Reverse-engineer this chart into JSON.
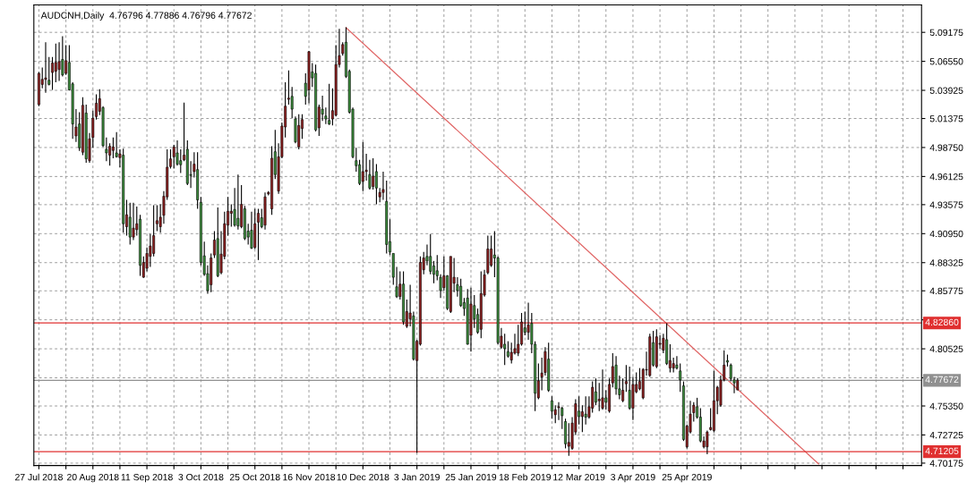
{
  "chart_data": {
    "type": "candlestick",
    "title": "AUDCNH,Daily  4.76796 4.77886 4.76796 4.77672",
    "categories": [
      "27 Jul 2018",
      null,
      null,
      null,
      null,
      null,
      null,
      null,
      null,
      null,
      null,
      null,
      null,
      null,
      null,
      null,
      "20 Aug 2018",
      null,
      null,
      null,
      null,
      null,
      null,
      null,
      null,
      null,
      null,
      null,
      null,
      null,
      null,
      null,
      "11 Sep 2018",
      null,
      null,
      null,
      null,
      null,
      null,
      null,
      null,
      null,
      null,
      null,
      null,
      null,
      null,
      null,
      "3 Oct 2018",
      null,
      null,
      null,
      null,
      null,
      null,
      null,
      null,
      null,
      null,
      null,
      null,
      null,
      null,
      null,
      "25 Oct 2018",
      null,
      null,
      null,
      null,
      null,
      null,
      null,
      null,
      null,
      null,
      null,
      null,
      null,
      null,
      null,
      "16 Nov 2018",
      null,
      null,
      null,
      null,
      null,
      null,
      null,
      null,
      null,
      null,
      null,
      null,
      null,
      null,
      null,
      "10 Dec 2018",
      null,
      null,
      null,
      null,
      null,
      null,
      null,
      null,
      null,
      null,
      null,
      null,
      null,
      null,
      null,
      "3 Jan 2019",
      null,
      null,
      null,
      null,
      null,
      null,
      null,
      null,
      null,
      null,
      null,
      null,
      null,
      null,
      null,
      "25 Jan 2019",
      null,
      null,
      null,
      null,
      null,
      null,
      null,
      null,
      null,
      null,
      null,
      null,
      null,
      null,
      null,
      "18 Feb 2019",
      null,
      null,
      null,
      null,
      null,
      null,
      null,
      null,
      null,
      null,
      null,
      null,
      null,
      null,
      null,
      "12 Mar 2019",
      null,
      null,
      null,
      null,
      null,
      null,
      null,
      null,
      null,
      null,
      null,
      null,
      null,
      null,
      null,
      "3 Apr 2019",
      null,
      null,
      null,
      null,
      null,
      null,
      null,
      null,
      null,
      null,
      null,
      null,
      null,
      null,
      null,
      "25 Apr 2019",
      null,
      null,
      null,
      null,
      null,
      null,
      null,
      null,
      null,
      null,
      null,
      null,
      null,
      null,
      null,
      null,
      null,
      null,
      null,
      null,
      null,
      null,
      null,
      null,
      null,
      null,
      null,
      null,
      null,
      null,
      null,
      null,
      null,
      null,
      null,
      null,
      null,
      null,
      null,
      null,
      null,
      null,
      null,
      null,
      null,
      null,
      null,
      null,
      null,
      null,
      null,
      null,
      null,
      null,
      null,
      null,
      null,
      null,
      null,
      null,
      null,
      null,
      null,
      null,
      null,
      null,
      null,
      null,
      null
    ],
    "ohlc": [
      [
        5.0263,
        5.0559,
        5.0249,
        5.0546
      ],
      [
        5.0446,
        5.0599,
        5.0411,
        5.0492
      ],
      [
        5.0492,
        5.0828,
        5.037,
        5.0505
      ],
      [
        5.0484,
        5.0694,
        5.0438,
        5.0446
      ],
      [
        5.0554,
        5.0694,
        5.0397,
        5.064
      ],
      [
        5.0565,
        5.0815,
        5.0465,
        5.0645
      ],
      [
        5.0581,
        5.0828,
        5.0478,
        5.0653
      ],
      [
        5.0672,
        5.0882,
        5.0519,
        5.0532
      ],
      [
        5.0546,
        5.0802,
        5.0532,
        5.0661
      ],
      [
        5.0645,
        5.0802,
        5.039,
        5.0397
      ],
      [
        5.0451,
        5.0465,
        4.9953,
        5.0088
      ],
      [
        4.998,
        5.0222,
        4.9926,
        5.0061
      ],
      [
        5.0088,
        5.0195,
        4.9845,
        4.9872
      ],
      [
        4.9832,
        5.033,
        4.9805,
        5.0257
      ],
      [
        5.0187,
        5.0263,
        4.9737,
        4.9772
      ],
      [
        4.9756,
        5.0007,
        4.9737,
        4.9953
      ],
      [
        4.9966,
        5.0209,
        4.9872,
        5.0141
      ],
      [
        5.0155,
        5.0357,
        5.0128,
        5.0276
      ],
      [
        5.0203,
        5.0403,
        5.0168,
        5.0317
      ],
      [
        5.0236,
        5.0249,
        4.988,
        4.9891
      ],
      [
        4.9859,
        4.9966,
        4.9751,
        4.9826
      ],
      [
        4.9805,
        4.9913,
        4.971,
        4.9886
      ],
      [
        4.9848,
        4.9966,
        4.9778,
        4.988
      ],
      [
        4.9826,
        5.0015,
        4.9783,
        4.9791
      ],
      [
        4.9783,
        4.9859,
        4.9697,
        4.9818
      ],
      [
        4.9805,
        4.9864,
        4.9104,
        4.9185
      ],
      [
        4.9158,
        4.9401,
        4.9077,
        4.9266
      ],
      [
        4.9244,
        4.9374,
        4.8997,
        4.9064
      ],
      [
        4.9064,
        4.9374,
        4.9037,
        4.9145
      ],
      [
        4.9131,
        4.9341,
        4.9077,
        4.9185
      ],
      [
        4.9226,
        4.9266,
        4.8714,
        4.8808
      ],
      [
        4.87,
        4.8889,
        4.8695,
        4.8835
      ],
      [
        4.8781,
        4.897,
        4.8754,
        4.8916
      ],
      [
        4.8889,
        4.9091,
        4.8794,
        4.8983
      ],
      [
        4.8916,
        4.9352,
        4.8889,
        4.9077
      ],
      [
        4.9185,
        4.9352,
        4.9118,
        4.9212
      ],
      [
        4.9158,
        4.936,
        4.9104,
        4.9244
      ],
      [
        4.9261,
        4.9481,
        4.9185,
        4.9433
      ],
      [
        4.9428,
        4.9859,
        4.9401,
        4.9697
      ],
      [
        4.9702,
        4.9859,
        4.9684,
        4.9772
      ],
      [
        4.9791,
        4.9899,
        4.9684,
        4.988
      ],
      [
        4.9826,
        4.9939,
        4.971,
        4.9724
      ],
      [
        4.9756,
        4.9859,
        4.9643,
        4.9719
      ],
      [
        4.9764,
        5.0282,
        4.9751,
        4.9805
      ],
      [
        4.9859,
        4.9939,
        4.9535,
        4.9549
      ],
      [
        4.963,
        4.9751,
        4.9508,
        4.9622
      ],
      [
        4.9657,
        4.9832,
        4.9603,
        4.9724
      ],
      [
        4.9675,
        4.9832,
        4.932,
        4.9401
      ],
      [
        4.9379,
        4.9428,
        4.8808,
        4.8835
      ],
      [
        4.8894,
        4.9023,
        4.8714,
        4.8727
      ],
      [
        4.8733,
        4.8808,
        4.8552,
        4.8579
      ],
      [
        4.8633,
        4.8916,
        4.8566,
        4.8875
      ],
      [
        4.8902,
        4.9118,
        4.8875,
        4.9037
      ],
      [
        4.905,
        4.9333,
        4.87,
        4.8714
      ],
      [
        4.8741,
        4.9118,
        4.8727,
        4.891
      ],
      [
        4.8889,
        4.9293,
        4.8862,
        4.9185
      ],
      [
        4.9172,
        4.9428,
        4.9077,
        4.9298
      ],
      [
        4.9279,
        4.936,
        4.9158,
        4.9298
      ],
      [
        4.9314,
        4.9508,
        4.9158,
        4.9172
      ],
      [
        4.9234,
        4.963,
        4.9131,
        4.9164
      ],
      [
        4.9158,
        4.9535,
        4.9145,
        4.936
      ],
      [
        4.932,
        4.9347,
        4.9037,
        4.905
      ],
      [
        4.9118,
        4.9185,
        4.8997,
        4.9064
      ],
      [
        4.9126,
        4.9293,
        4.8956,
        4.8964
      ],
      [
        4.897,
        4.932,
        4.8956,
        4.9185
      ],
      [
        4.9199,
        4.932,
        4.8856,
        4.9279
      ],
      [
        4.9239,
        4.932,
        4.9145,
        4.9158
      ],
      [
        4.9172,
        4.9468,
        4.9131,
        4.9428
      ],
      [
        4.9455,
        4.9481,
        4.9441,
        4.9468
      ],
      [
        4.932,
        4.9886,
        4.9266,
        4.9778
      ],
      [
        4.9837,
        5.0034,
        4.9589,
        4.963
      ],
      [
        4.9481,
        4.9913,
        4.9455,
        4.9791
      ],
      [
        4.9791,
        5.0101,
        4.9778,
        5.0069
      ],
      [
        5.0061,
        5.0465,
        4.9966,
        5.0249
      ],
      [
        5.0311,
        5.0573,
        5.0263,
        5.0322
      ],
      [
        5.0338,
        5.0424,
        5.0141,
        5.0222
      ],
      [
        5.0133,
        5.0155,
        4.9913,
        4.9926
      ],
      [
        4.988,
        5.0177,
        4.9859,
        5.0074
      ],
      [
        5.0047,
        5.0177,
        4.9953,
        5.0128
      ],
      [
        5.0457,
        5.0546,
        5.0263,
        5.0338
      ],
      [
        5.0397,
        5.0748,
        5.0276,
        5.0742
      ],
      [
        5.0559,
        5.064,
        5.0424,
        5.0505
      ],
      [
        5.0546,
        5.0626,
        5.002,
        5.0034
      ],
      [
        5.0053,
        5.0263,
        4.998,
        5.0241
      ],
      [
        5.0222,
        5.0344,
        5.0115,
        5.0177
      ],
      [
        5.016,
        5.0236,
        5.0088,
        5.0133
      ],
      [
        5.012,
        5.0451,
        5.008,
        5.0088
      ],
      [
        5.0133,
        5.0411,
        5.0074,
        5.0209
      ],
      [
        5.0168,
        5.0802,
        5.0155,
        5.0626
      ],
      [
        5.0626,
        5.095,
        5.0599,
        5.0707
      ],
      [
        5.0726,
        5.0828,
        5.0707,
        5.0807
      ],
      [
        5.0828,
        5.0963,
        5.0505,
        5.0519
      ],
      [
        5.0565,
        5.0581,
        5.0182,
        5.0195
      ],
      [
        5.0222,
        5.0236,
        4.9778,
        4.9791
      ],
      [
        4.9756,
        4.9872,
        4.9657,
        4.971
      ],
      [
        4.9719,
        4.9764,
        4.9535,
        4.9549
      ],
      [
        4.9568,
        4.9926,
        4.9481,
        4.9657
      ],
      [
        4.9657,
        4.9818,
        4.9576,
        4.967
      ],
      [
        4.963,
        4.9764,
        4.9495,
        4.9508
      ],
      [
        4.9522,
        4.9778,
        4.9495,
        4.9616
      ],
      [
        4.9657,
        4.9724,
        4.936,
        4.9508
      ],
      [
        4.9428,
        4.9508,
        4.9379,
        4.9468
      ],
      [
        4.9468,
        4.9657,
        4.9401,
        4.9495
      ],
      [
        4.9387,
        4.9576,
        4.8916,
        4.8997
      ],
      [
        4.9023,
        4.9226,
        4.8902,
        4.8929
      ],
      [
        4.8916,
        4.8916,
        4.8633,
        4.87
      ],
      [
        4.8614,
        4.8794,
        4.8512,
        4.8525
      ],
      [
        4.8525,
        4.8754,
        4.8498,
        4.8638
      ],
      [
        4.8638,
        4.8754,
        4.8269,
        4.8296
      ],
      [
        4.8256,
        4.8498,
        4.8242,
        4.839
      ],
      [
        4.8323,
        4.8633,
        4.8256,
        4.8377
      ],
      [
        4.835,
        4.839,
        4.7946,
        4.7959
      ],
      [
        4.7946,
        4.8135,
        4.7111,
        4.8121
      ],
      [
        4.8094,
        4.8889,
        4.8081,
        4.8835
      ],
      [
        4.8768,
        4.8929,
        4.8727,
        4.8875
      ],
      [
        4.8889,
        4.8997,
        4.8808,
        4.8848
      ],
      [
        4.8889,
        4.9091,
        4.8727,
        4.8754
      ],
      [
        4.8803,
        4.8848,
        4.8646,
        4.8727
      ],
      [
        4.8759,
        4.8902,
        4.8673,
        4.8714
      ],
      [
        4.87,
        4.8727,
        4.8512,
        4.8579
      ],
      [
        4.8606,
        4.8889,
        4.8579,
        4.8714
      ],
      [
        4.8714,
        4.872,
        4.8404,
        4.8417
      ],
      [
        4.839,
        4.8889,
        4.8377,
        4.8889
      ],
      [
        4.8646,
        4.8875,
        4.8566,
        4.87
      ],
      [
        4.8633,
        4.87,
        4.8525,
        4.8579
      ],
      [
        4.8619,
        4.8687,
        4.8431,
        4.8444
      ],
      [
        4.8471,
        4.8512,
        4.835,
        4.8417
      ],
      [
        4.8512,
        4.8593,
        4.809,
        4.8094
      ],
      [
        4.8175,
        4.8606,
        4.8027,
        4.8458
      ],
      [
        4.8444,
        4.8539,
        4.8242,
        4.8323
      ],
      [
        4.8363,
        4.8417,
        4.8188,
        4.8202
      ],
      [
        4.8229,
        4.8754,
        4.8148,
        4.8552
      ],
      [
        4.8539,
        4.8768,
        4.8525,
        4.8722
      ],
      [
        4.8741,
        4.9077,
        4.8727,
        4.8956
      ],
      [
        4.8808,
        4.9077,
        4.8794,
        4.8956
      ],
      [
        4.8902,
        4.9118,
        4.87,
        4.8875
      ],
      [
        4.8875,
        4.8889,
        4.8094,
        4.8108
      ],
      [
        4.8067,
        4.8242,
        4.8054,
        4.8167
      ],
      [
        4.8094,
        4.8188,
        4.7905,
        4.8054
      ],
      [
        4.8027,
        4.8121,
        4.7973,
        4.7986
      ],
      [
        4.7951,
        4.8108,
        4.7919,
        4.8021
      ],
      [
        4.8013,
        4.8188,
        4.8,
        4.8054
      ],
      [
        4.8013,
        4.8269,
        4.7986,
        4.8094
      ],
      [
        4.8094,
        4.8377,
        4.8081,
        4.8296
      ],
      [
        4.8242,
        4.839,
        4.8175,
        4.8202
      ],
      [
        4.8202,
        4.8471,
        4.8135,
        4.8269
      ],
      [
        4.8283,
        4.8377,
        4.8013,
        4.8094
      ],
      [
        4.8094,
        4.8121,
        4.7488,
        4.765
      ],
      [
        4.7609,
        4.7919,
        4.7596,
        4.7763
      ],
      [
        4.7798,
        4.7973,
        4.7677,
        4.7833
      ],
      [
        4.7838,
        4.8067,
        4.7811,
        4.8027
      ],
      [
        4.7959,
        4.8108,
        4.7663,
        4.7677
      ],
      [
        4.7582,
        4.7623,
        4.742,
        4.7488
      ],
      [
        4.7456,
        4.7542,
        4.738,
        4.7501
      ],
      [
        4.752,
        4.7569,
        4.7407,
        4.7528
      ],
      [
        4.7515,
        4.7528,
        4.7326,
        4.7447
      ],
      [
        4.7394,
        4.742,
        4.7151,
        4.7192
      ],
      [
        4.717,
        4.738,
        4.7084,
        4.7205
      ],
      [
        4.7151,
        4.7434,
        4.7138,
        4.738
      ],
      [
        4.7299,
        4.7596,
        4.7272,
        4.7555
      ],
      [
        4.7488,
        4.7623,
        4.7367,
        4.7439
      ],
      [
        4.7439,
        4.7542,
        4.7299,
        4.7483
      ],
      [
        4.7461,
        4.7623,
        4.7367,
        4.7434
      ],
      [
        4.7434,
        4.7623,
        4.742,
        4.7528
      ],
      [
        4.7515,
        4.7757,
        4.7474,
        4.7704
      ],
      [
        4.7663,
        4.7784,
        4.7542,
        4.7569
      ],
      [
        4.7582,
        4.7744,
        4.7488,
        4.7596
      ],
      [
        4.7515,
        4.7865,
        4.7501,
        4.7609
      ],
      [
        4.7609,
        4.7677,
        4.7501,
        4.7569
      ],
      [
        4.7488,
        4.7784,
        4.7474,
        4.773
      ],
      [
        4.7744,
        4.8013,
        4.7704,
        4.7892
      ],
      [
        4.7905,
        4.7986,
        4.7636,
        4.769
      ],
      [
        4.769,
        4.7811,
        4.7596,
        4.7636
      ],
      [
        4.7582,
        4.7784,
        4.7569,
        4.7677
      ],
      [
        4.7736,
        4.7905,
        4.7663,
        4.7757
      ],
      [
        4.7677,
        4.7892,
        4.7501,
        4.7515
      ],
      [
        4.7515,
        4.7798,
        4.7407,
        4.773
      ],
      [
        4.7663,
        4.7838,
        4.765,
        4.773
      ],
      [
        4.769,
        4.7878,
        4.7677,
        4.7757
      ],
      [
        4.7609,
        4.7878,
        4.7596,
        4.7865
      ],
      [
        4.786,
        4.8027,
        4.7811,
        4.7865
      ],
      [
        4.7811,
        4.8188,
        4.7798,
        4.8161
      ],
      [
        4.8108,
        4.8215,
        4.7892,
        4.7905
      ],
      [
        4.7892,
        4.8229,
        4.7878,
        4.8161
      ],
      [
        4.8094,
        4.8175,
        4.8054,
        4.8102
      ],
      [
        4.804,
        4.8188,
        4.8013,
        4.8148
      ],
      [
        4.8135,
        4.8283,
        4.7905,
        4.7919
      ],
      [
        4.7878,
        4.8094,
        4.7838,
        4.7946
      ],
      [
        4.7878,
        4.7973,
        4.7838,
        4.7919
      ],
      [
        4.7905,
        4.7986,
        4.7865,
        4.7878
      ],
      [
        4.7852,
        4.7919,
        4.7663,
        4.7771
      ],
      [
        4.7717,
        4.7757,
        4.7218,
        4.7232
      ],
      [
        4.7165,
        4.7367,
        4.7151,
        4.7353
      ],
      [
        4.7299,
        4.7582,
        4.7286,
        4.7461
      ],
      [
        4.7474,
        4.7569,
        4.7394,
        4.7542
      ],
      [
        4.7528,
        4.7609,
        4.742,
        4.7434
      ],
      [
        4.7434,
        4.7515,
        4.7205,
        4.7218
      ],
      [
        4.7165,
        4.7259,
        4.7151,
        4.7218
      ],
      [
        4.7165,
        4.7313,
        4.7097,
        4.7299
      ],
      [
        4.7321,
        4.7515,
        4.7313,
        4.734
      ],
      [
        4.7313,
        4.7852,
        4.7299,
        4.7582
      ],
      [
        4.7582,
        4.7717,
        4.7461,
        4.7704
      ],
      [
        4.7542,
        4.7811,
        4.7528,
        4.7771
      ],
      [
        4.7771,
        4.804,
        4.7757,
        4.7905
      ],
      [
        4.7946,
        4.8,
        4.7892,
        4.7932
      ],
      [
        4.7905,
        4.7919,
        4.7757,
        4.7784
      ],
      [
        4.7771,
        4.7798,
        4.765,
        4.7744
      ],
      [
        4.76796,
        4.77886,
        4.76796,
        4.77672
      ],
      null,
      null,
      null,
      null,
      null,
      null,
      null,
      null,
      null,
      null,
      null,
      null,
      null,
      null,
      null,
      null,
      null,
      null,
      null,
      null,
      null,
      null,
      null,
      null,
      null,
      null,
      null,
      null,
      null,
      null,
      null,
      null,
      null,
      null,
      null,
      null,
      null,
      null,
      null,
      null,
      null,
      null,
      null,
      null,
      null,
      null,
      null,
      null,
      null,
      null,
      null,
      null,
      null,
      null
    ],
    "colors": [
      "#8b1e1e",
      "#8b1e1e",
      "#8b1e1e",
      "#3a8a3a",
      "#8b1e1e",
      "#8b1e1e",
      "#8b1e1e",
      "#3a8a3a",
      "#8b1e1e",
      "#3a8a3a",
      "#3a8a3a",
      "#8b1e1e",
      "#3a8a3a",
      "#8b1e1e",
      "#3a8a3a",
      "#8b1e1e",
      "#8b1e1e",
      "#8b1e1e",
      "#8b1e1e",
      "#3a8a3a",
      "#3a8a3a",
      "#8b1e1e",
      "#8b1e1e",
      "#3a8a3a",
      "#8b1e1e",
      "#3a8a3a",
      "#8b1e1e",
      "#3a8a3a",
      "#8b1e1e",
      "#8b1e1e",
      "#3a8a3a",
      "#8b1e1e",
      "#8b1e1e",
      "#8b1e1e",
      "#8b1e1e",
      "#8b1e1e",
      "#8b1e1e",
      "#8b1e1e",
      "#8b1e1e",
      "#8b1e1e",
      "#8b1e1e",
      "#3a8a3a",
      "#3a8a3a",
      "#8b1e1e",
      "#3a8a3a",
      "#3a8a3a",
      "#8b1e1e",
      "#3a8a3a",
      "#3a8a3a",
      "#3a8a3a",
      "#3a8a3a",
      "#8b1e1e",
      "#8b1e1e",
      "#3a8a3a",
      "#8b1e1e",
      "#8b1e1e",
      "#8b1e1e",
      "#8b1e1e",
      "#3a8a3a",
      "#3a8a3a",
      "#8b1e1e",
      "#3a8a3a",
      "#3a8a3a",
      "#3a8a3a",
      "#8b1e1e",
      "#8b1e1e",
      "#3a8a3a",
      "#8b1e1e",
      "#8b1e1e",
      "#8b1e1e",
      "#3a8a3a",
      "#8b1e1e",
      "#8b1e1e",
      "#8b1e1e",
      "#8b1e1e",
      "#3a8a3a",
      "#3a8a3a",
      "#8b1e1e",
      "#8b1e1e",
      "#3a8a3a",
      "#8b1e1e",
      "#3a8a3a",
      "#3a8a3a",
      "#8b1e1e",
      "#3a8a3a",
      "#3a8a3a",
      "#3a8a3a",
      "#8b1e1e",
      "#8b1e1e",
      "#8b1e1e",
      "#8b1e1e",
      "#3a8a3a",
      "#3a8a3a",
      "#3a8a3a",
      "#3a8a3a",
      "#3a8a3a",
      "#8b1e1e",
      "#8b1e1e",
      "#3a8a3a",
      "#8b1e1e",
      "#3a8a3a",
      "#8b1e1e",
      "#8b1e1e",
      "#3a8a3a",
      "#3a8a3a",
      "#3a8a3a",
      "#3a8a3a",
      "#8b1e1e",
      "#3a8a3a",
      "#8b1e1e",
      "#8b1e1e",
      "#3a8a3a",
      "#8b1e1e",
      "#8b1e1e",
      "#8b1e1e",
      "#3a8a3a",
      "#3a8a3a",
      "#3a8a3a",
      "#3a8a3a",
      "#3a8a3a",
      "#8b1e1e",
      "#3a8a3a",
      "#8b1e1e",
      "#8b1e1e",
      "#3a8a3a",
      "#3a8a3a",
      "#3a8a3a",
      "#3a8a3a",
      "#8b1e1e",
      "#3a8a3a",
      "#3a8a3a",
      "#8b1e1e",
      "#8b1e1e",
      "#8b1e1e",
      "#8b1e1e",
      "#3a8a3a",
      "#3a8a3a",
      "#8b1e1e",
      "#3a8a3a",
      "#3a8a3a",
      "#8b1e1e",
      "#8b1e1e",
      "#8b1e1e",
      "#8b1e1e",
      "#3a8a3a",
      "#8b1e1e",
      "#3a8a3a",
      "#3a8a3a",
      "#8b1e1e",
      "#8b1e1e",
      "#8b1e1e",
      "#3a8a3a",
      "#3a8a3a",
      "#8b1e1e",
      "#8b1e1e",
      "#3a8a3a",
      "#3a8a3a",
      "#8b1e1e",
      "#8b1e1e",
      "#8b1e1e",
      "#3a8a3a",
      "#8b1e1e",
      "#3a8a3a",
      "#8b1e1e",
      "#8b1e1e",
      "#3a8a3a",
      "#8b1e1e",
      "#8b1e1e",
      "#3a8a3a",
      "#8b1e1e",
      "#8b1e1e",
      "#3a8a3a",
      "#3a8a3a",
      "#8b1e1e",
      "#8b1e1e",
      "#3a8a3a",
      "#8b1e1e",
      "#8b1e1e",
      "#8b1e1e",
      "#8b1e1e",
      "#8b1e1e",
      "#8b1e1e",
      "#3a8a3a",
      "#8b1e1e",
      "#8b1e1e",
      "#8b1e1e",
      "#3a8a3a",
      "#8b1e1e",
      "#8b1e1e",
      "#3a8a3a",
      "#3a8a3a",
      "#3a8a3a",
      "#8b1e1e",
      "#8b1e1e",
      "#8b1e1e",
      "#3a8a3a",
      "#3a8a3a",
      "#8b1e1e",
      "#8b1e1e",
      "#8b1e1e",
      "#8b1e1e",
      "#8b1e1e",
      "#8b1e1e",
      "#8b1e1e",
      "#3a8a3a",
      "#3a8a3a",
      "#3a8a3a",
      "#8b1e1e",
      null,
      null,
      null,
      null,
      null,
      null,
      null,
      null,
      null,
      null,
      null,
      null,
      null,
      null,
      null,
      null,
      null,
      null,
      null,
      null,
      null,
      null,
      null,
      null,
      null,
      null,
      null,
      null,
      null,
      null,
      null,
      null,
      null,
      null,
      null,
      null,
      null,
      null,
      null,
      null,
      null,
      null,
      null,
      null,
      null,
      null,
      null,
      null,
      null,
      null,
      null,
      null,
      null,
      null
    ],
    "series": [
      {
        "type": "line",
        "color": "#e06464",
        "values": [
          null,
          null,
          null,
          null,
          null,
          null,
          null,
          null,
          null,
          null,
          null,
          null,
          null,
          null,
          null,
          null,
          null,
          null,
          null,
          null,
          null,
          null,
          null,
          null,
          null,
          null,
          null,
          null,
          null,
          null,
          null,
          null,
          null,
          null,
          null,
          null,
          null,
          null,
          null,
          null,
          null,
          null,
          null,
          null,
          null,
          null,
          null,
          null,
          null,
          null,
          null,
          null,
          null,
          null,
          null,
          null,
          null,
          null,
          null,
          null,
          null,
          null,
          null,
          null,
          null,
          null,
          null,
          null,
          null,
          null,
          null,
          null,
          null,
          null,
          null,
          null,
          null,
          null,
          null,
          null,
          null,
          null,
          null,
          null,
          null,
          null,
          null,
          null,
          null,
          null,
          null,
          5.096,
          null,
          null,
          null,
          null,
          null,
          null,
          null,
          null,
          null,
          null,
          null,
          null,
          null,
          null,
          null,
          null,
          null,
          null,
          null,
          null,
          null,
          null,
          null,
          null,
          null,
          null,
          null,
          null,
          null,
          null,
          null,
          null,
          null,
          null,
          null,
          null,
          null,
          null,
          null,
          null,
          null,
          null,
          null,
          null,
          null,
          null,
          null,
          null,
          null,
          null,
          null,
          null,
          null,
          null,
          null,
          null,
          null,
          null,
          null,
          null,
          null,
          null,
          null,
          null,
          null,
          null,
          null,
          null,
          null,
          null,
          null,
          null,
          null,
          null,
          null,
          null,
          null,
          null,
          null,
          null,
          null,
          null,
          null,
          null,
          null,
          null,
          null,
          null,
          null,
          null,
          null,
          null,
          null,
          null,
          null,
          null,
          null,
          null,
          null,
          null,
          null,
          null,
          null,
          null,
          null,
          null,
          null,
          null,
          null,
          null,
          null,
          null,
          null,
          null,
          null,
          null,
          null,
          null,
          null,
          null,
          null,
          null,
          null,
          null,
          null,
          null,
          null,
          null,
          null,
          null,
          null,
          null,
          null,
          null,
          null,
          null,
          null,
          null,
          null,
          4.701,
          null,
          null,
          null,
          null,
          null,
          null,
          null,
          null,
          null,
          null,
          null,
          null,
          null,
          null,
          null,
          null,
          null,
          null,
          null,
          null,
          null,
          null,
          null,
          null,
          null,
          null,
          null,
          null,
          null,
          null
        ]
      }
    ],
    "ref_lines": [
      {
        "axis": "y",
        "value": 4.8286,
        "label": "4.82860",
        "color": "#e03030"
      },
      {
        "axis": "y",
        "value": 4.71205,
        "label": "4.71205",
        "color": "#e03030"
      },
      {
        "axis": "y",
        "value": 4.77672,
        "label": "4.77672",
        "color": "#909090"
      }
    ],
    "ylim": [
      4.6996,
      5.1166
    ],
    "yticks": [
      {
        "value": 5.09175,
        "label": "5.09175"
      },
      {
        "value": 5.0655,
        "label": "5.06550"
      },
      {
        "value": 5.03925,
        "label": "5.03925"
      },
      {
        "value": 5.01375,
        "label": "5.01375"
      },
      {
        "value": 4.9875,
        "label": "4.98750"
      },
      {
        "value": 4.96125,
        "label": "4.96125"
      },
      {
        "value": 4.93575,
        "label": "4.93575"
      },
      {
        "value": 4.9095,
        "label": "4.90950"
      },
      {
        "value": 4.88325,
        "label": "4.88325"
      },
      {
        "value": 4.85775,
        "label": "4.85775"
      },
      {
        "value": 4.8315,
        "label": null
      },
      {
        "value": 4.80525,
        "label": "4.80525"
      },
      {
        "value": 4.779,
        "label": null
      },
      {
        "value": 4.7535,
        "label": "4.75350"
      },
      {
        "value": 4.72725,
        "label": "4.72725"
      },
      {
        "value": 4.70175,
        "label": "4.70175"
      }
    ],
    "grid": true
  }
}
